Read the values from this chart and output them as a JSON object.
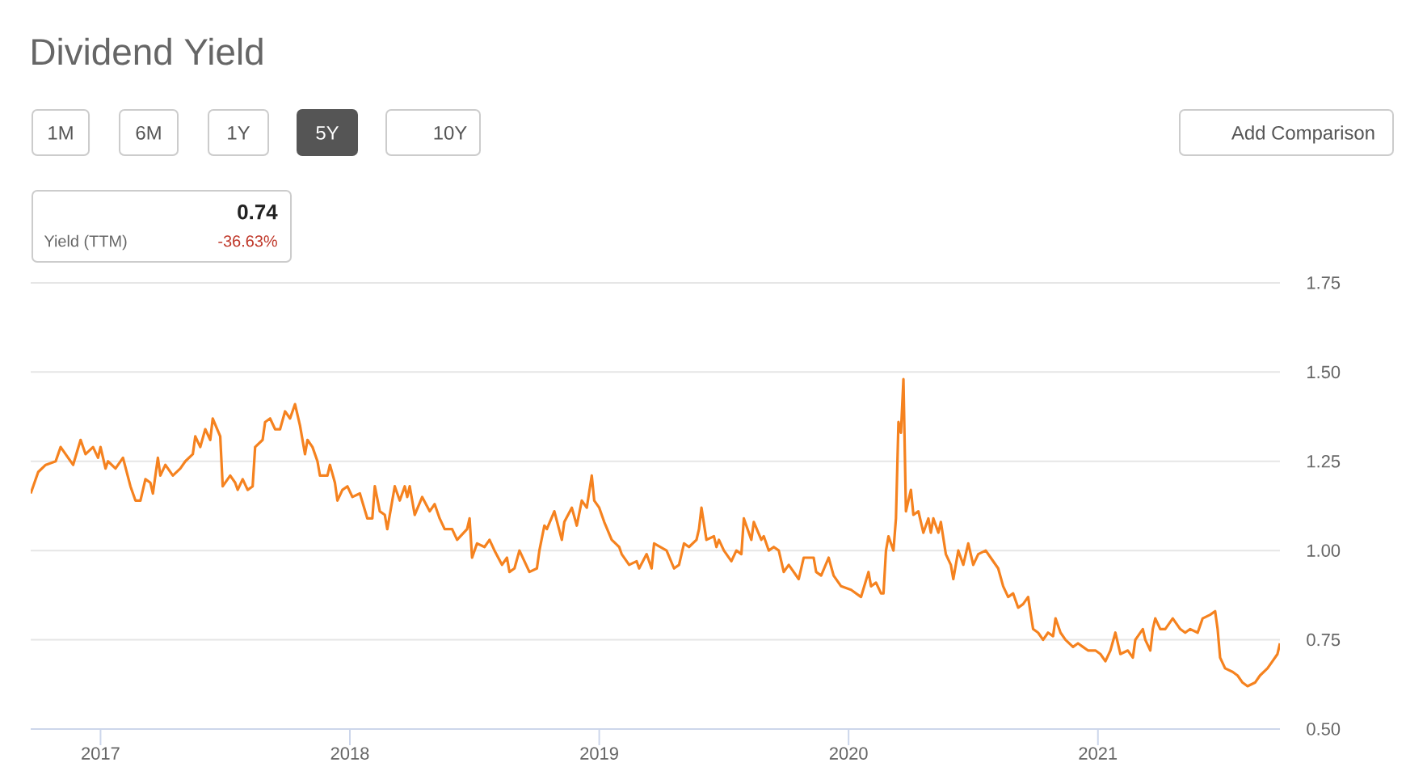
{
  "chart_data": {
    "type": "line",
    "title": "Dividend Yield",
    "annotations": [
      "1M",
      "6M",
      "1Y",
      "5Y",
      "10Y",
      "Add Comparison",
      "0.74",
      "Yield (TTM)",
      "-36.63%"
    ],
    "x": [
      2016.72,
      2016.75,
      2016.78,
      2016.82,
      2016.84,
      2016.87,
      2016.89,
      2016.92,
      2016.94,
      2016.97,
      2016.99,
      2017.0,
      2017.02,
      2017.03,
      2017.06,
      2017.09,
      2017.12,
      2017.14,
      2017.16,
      2017.18,
      2017.2,
      2017.21,
      2017.23,
      2017.24,
      2017.26,
      2017.29,
      2017.32,
      2017.34,
      2017.37,
      2017.38,
      2017.4,
      2017.42,
      2017.44,
      2017.45,
      2017.48,
      2017.49,
      2017.52,
      2017.54,
      2017.55,
      2017.57,
      2017.59,
      2017.61,
      2017.62,
      2017.65,
      2017.66,
      2017.68,
      2017.7,
      2017.72,
      2017.74,
      2017.76,
      2017.78,
      2017.8,
      2017.82,
      2017.83,
      2017.85,
      2017.87,
      2017.88,
      2017.91,
      2017.92,
      2017.94,
      2017.95,
      2017.97,
      2017.99,
      2018.01,
      2018.04,
      2018.07,
      2018.09,
      2018.1,
      2018.12,
      2018.14,
      2018.15,
      2018.18,
      2018.2,
      2018.22,
      2018.23,
      2018.24,
      2018.26,
      2018.29,
      2018.32,
      2018.34,
      2018.36,
      2018.38,
      2018.41,
      2018.43,
      2018.47,
      2018.48,
      2018.49,
      2018.51,
      2018.54,
      2018.56,
      2018.58,
      2018.61,
      2018.63,
      2018.64,
      2018.66,
      2018.68,
      2018.7,
      2018.72,
      2018.75,
      2018.76,
      2018.78,
      2018.79,
      2018.82,
      2018.85,
      2018.86,
      2018.89,
      2018.91,
      2018.93,
      2018.95,
      2018.97,
      2018.98,
      2019.0,
      2019.02,
      2019.05,
      2019.08,
      2019.09,
      2019.12,
      2019.15,
      2019.16,
      2019.19,
      2019.21,
      2019.22,
      2019.27,
      2019.3,
      2019.32,
      2019.34,
      2019.36,
      2019.39,
      2019.4,
      2019.41,
      2019.43,
      2019.46,
      2019.47,
      2019.48,
      2019.5,
      2019.53,
      2019.55,
      2019.57,
      2019.58,
      2019.61,
      2019.62,
      2019.65,
      2019.66,
      2019.68,
      2019.7,
      2019.72,
      2019.74,
      2019.76,
      2019.8,
      2019.82,
      2019.86,
      2019.87,
      2019.89,
      2019.92,
      2019.94,
      2019.97,
      2020.01,
      2020.03,
      2020.05,
      2020.08,
      2020.09,
      2020.11,
      2020.13,
      2020.14,
      2020.15,
      2020.16,
      2020.18,
      2020.19,
      2020.2,
      2020.21,
      2020.22,
      2020.23,
      2020.25,
      2020.26,
      2020.28,
      2020.3,
      2020.32,
      2020.33,
      2020.34,
      2020.36,
      2020.37,
      2020.39,
      2020.41,
      2020.42,
      2020.44,
      2020.46,
      2020.48,
      2020.5,
      2020.52,
      2020.55,
      2020.57,
      2020.6,
      2020.62,
      2020.64,
      2020.66,
      2020.68,
      2020.7,
      2020.72,
      2020.74,
      2020.76,
      2020.78,
      2020.8,
      2020.82,
      2020.83,
      2020.85,
      2020.87,
      2020.9,
      2020.92,
      2020.94,
      2020.96,
      2020.99,
      2021.01,
      2021.03,
      2021.05,
      2021.07,
      2021.09,
      2021.12,
      2021.14,
      2021.15,
      2021.18,
      2021.19,
      2021.21,
      2021.22,
      2021.23,
      2021.25,
      2021.27,
      2021.3,
      2021.33,
      2021.35,
      2021.37,
      2021.4,
      2021.42,
      2021.45,
      2021.47,
      2021.48,
      2021.49,
      2021.51,
      2021.54,
      2021.56,
      2021.58,
      2021.6,
      2021.63,
      2021.65,
      2021.68,
      2021.7,
      2021.72,
      2021.73
    ],
    "series": [
      {
        "color": "#f5821f",
        "values": [
          1.16,
          1.22,
          1.24,
          1.25,
          1.29,
          1.26,
          1.24,
          1.31,
          1.27,
          1.29,
          1.26,
          1.29,
          1.23,
          1.25,
          1.23,
          1.26,
          1.18,
          1.14,
          1.14,
          1.2,
          1.19,
          1.16,
          1.26,
          1.21,
          1.24,
          1.21,
          1.23,
          1.25,
          1.27,
          1.32,
          1.29,
          1.34,
          1.31,
          1.37,
          1.32,
          1.18,
          1.21,
          1.19,
          1.17,
          1.2,
          1.17,
          1.18,
          1.29,
          1.31,
          1.36,
          1.37,
          1.34,
          1.34,
          1.39,
          1.37,
          1.41,
          1.35,
          1.27,
          1.31,
          1.29,
          1.25,
          1.21,
          1.21,
          1.24,
          1.19,
          1.14,
          1.17,
          1.18,
          1.15,
          1.16,
          1.09,
          1.09,
          1.18,
          1.11,
          1.1,
          1.06,
          1.18,
          1.14,
          1.18,
          1.15,
          1.18,
          1.1,
          1.15,
          1.11,
          1.13,
          1.09,
          1.06,
          1.06,
          1.03,
          1.06,
          1.09,
          0.98,
          1.02,
          1.01,
          1.03,
          1.0,
          0.96,
          0.98,
          0.94,
          0.95,
          1.0,
          0.97,
          0.94,
          0.95,
          1.0,
          1.07,
          1.06,
          1.11,
          1.03,
          1.08,
          1.12,
          1.07,
          1.14,
          1.12,
          1.21,
          1.14,
          1.12,
          1.08,
          1.03,
          1.01,
          0.99,
          0.96,
          0.97,
          0.95,
          0.99,
          0.95,
          1.02,
          1.0,
          0.95,
          0.96,
          1.02,
          1.01,
          1.03,
          1.06,
          1.12,
          1.03,
          1.04,
          1.01,
          1.03,
          1.0,
          0.97,
          1.0,
          0.99,
          1.09,
          1.03,
          1.08,
          1.03,
          1.04,
          1.0,
          1.01,
          1.0,
          0.94,
          0.96,
          0.92,
          0.98,
          0.98,
          0.94,
          0.93,
          0.98,
          0.93,
          0.9,
          0.89,
          0.88,
          0.87,
          0.94,
          0.9,
          0.91,
          0.88,
          0.88,
          1.0,
          1.04,
          1.0,
          1.09,
          1.36,
          1.33,
          1.48,
          1.11,
          1.17,
          1.1,
          1.11,
          1.05,
          1.09,
          1.05,
          1.09,
          1.05,
          1.08,
          0.99,
          0.96,
          0.92,
          1.0,
          0.96,
          1.02,
          0.96,
          0.99,
          1.0,
          0.98,
          0.95,
          0.9,
          0.87,
          0.88,
          0.84,
          0.85,
          0.87,
          0.78,
          0.77,
          0.75,
          0.77,
          0.76,
          0.81,
          0.77,
          0.75,
          0.73,
          0.74,
          0.73,
          0.72,
          0.72,
          0.71,
          0.69,
          0.72,
          0.77,
          0.71,
          0.72,
          0.7,
          0.75,
          0.78,
          0.75,
          0.72,
          0.78,
          0.81,
          0.78,
          0.78,
          0.81,
          0.78,
          0.77,
          0.78,
          0.77,
          0.81,
          0.82,
          0.83,
          0.78,
          0.7,
          0.67,
          0.66,
          0.65,
          0.63,
          0.62,
          0.63,
          0.65,
          0.67,
          0.69,
          0.71,
          0.74
        ]
      }
    ],
    "xlim": [
      2016.72,
      2021.73
    ],
    "xticks": [
      2017,
      2018,
      2019,
      2020,
      2021
    ],
    "ylim": [
      0.5,
      1.75
    ],
    "yticks": [
      {
        "value": 0.5,
        "label": "0.50"
      },
      0.75,
      {
        "value": 1.0,
        "label": "1.00"
      },
      1.25,
      {
        "value": 1.5,
        "label": "1.50"
      },
      1.75
    ],
    "grid": "y"
  }
}
